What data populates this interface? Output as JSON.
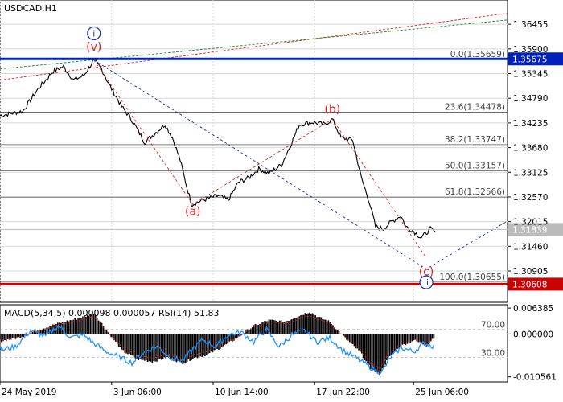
{
  "chart_data": [
    {
      "type": "line",
      "symbol": "USDCAD,H1",
      "ylim": [
        1.302,
        1.37
      ],
      "yticks": [
        1.36455,
        1.359,
        1.35345,
        1.3479,
        1.34235,
        1.3368,
        1.33125,
        1.3257,
        1.32015,
        1.3146,
        1.30905
      ],
      "ytick_labels": [
        "1.36455",
        "1.35900",
        "1.35345",
        "1.34790",
        "1.34235",
        "1.33680",
        "1.33125",
        "1.32570",
        "1.32015",
        "1.31460",
        "1.30905"
      ],
      "xlim": [
        0,
        1000
      ],
      "xtick_x": [
        0,
        220,
        420,
        620,
        815
      ],
      "xtick_labels": [
        "24 May 2019",
        "3 Jun 06:00",
        "10 Jun 14:00",
        "17 Jun 22:00",
        "25 Jun 06:00"
      ],
      "price_points": [
        [
          0,
          1.344
        ],
        [
          45,
          1.345
        ],
        [
          75,
          1.35
        ],
        [
          105,
          1.354
        ],
        [
          125,
          1.355
        ],
        [
          145,
          1.352
        ],
        [
          165,
          1.353
        ],
        [
          185,
          1.3565
        ],
        [
          200,
          1.3545
        ],
        [
          215,
          1.351
        ],
        [
          240,
          1.346
        ],
        [
          260,
          1.343
        ],
        [
          285,
          1.338
        ],
        [
          305,
          1.34
        ],
        [
          325,
          1.342
        ],
        [
          340,
          1.339
        ],
        [
          355,
          1.334
        ],
        [
          368,
          1.328
        ],
        [
          378,
          1.324
        ],
        [
          400,
          1.325
        ],
        [
          430,
          1.326
        ],
        [
          450,
          1.325
        ],
        [
          470,
          1.329
        ],
        [
          490,
          1.33
        ],
        [
          510,
          1.332
        ],
        [
          530,
          1.331
        ],
        [
          555,
          1.333
        ],
        [
          575,
          1.338
        ],
        [
          590,
          1.342
        ],
        [
          615,
          1.3425
        ],
        [
          640,
          1.342
        ],
        [
          655,
          1.3432
        ],
        [
          672,
          1.339
        ],
        [
          695,
          1.3385
        ],
        [
          712,
          1.33
        ],
        [
          728,
          1.3245
        ],
        [
          740,
          1.319
        ],
        [
          755,
          1.3185
        ],
        [
          770,
          1.32
        ],
        [
          790,
          1.3215
        ],
        [
          800,
          1.319
        ],
        [
          815,
          1.318
        ],
        [
          830,
          1.3165
        ],
        [
          848,
          1.3185
        ],
        [
          858,
          1.3178
        ]
      ],
      "horizontal_lines": [
        {
          "price": 1.35675,
          "label": "1.35675",
          "color": "#0022bb"
        },
        {
          "price": 1.30608,
          "label": "1.30608",
          "color": "#cc0000"
        },
        {
          "price": 1.31839,
          "label": "1.31839",
          "color": "#bbbbbb"
        }
      ],
      "fibonacci_levels": [
        {
          "price": 1.35659,
          "label": "0.0(1.35659)"
        },
        {
          "price": 1.34478,
          "label": "23.6(1.34478)"
        },
        {
          "price": 1.33747,
          "label": "38.2(1.33747)"
        },
        {
          "price": 1.33157,
          "label": "50.0(1.33157)"
        },
        {
          "price": 1.32566,
          "label": "61.8(1.32566)"
        },
        {
          "price": 1.30655,
          "label": "100.0(1.30655)"
        }
      ],
      "wave_labels": [
        {
          "text": "i",
          "x": 185,
          "price": 1.3625,
          "color": "#1a2eb0",
          "circled": true
        },
        {
          "text": "(v)",
          "x": 185,
          "price": 1.3595,
          "color": "#dd2222",
          "circled": false
        },
        {
          "text": "(a)",
          "x": 380,
          "price": 1.3225,
          "color": "#dd2222",
          "circled": false
        },
        {
          "text": "(b)",
          "x": 655,
          "price": 1.3455,
          "color": "#dd2222",
          "circled": false
        },
        {
          "text": "(c)",
          "x": 840,
          "price": 1.309,
          "color": "#dd2222",
          "circled": false
        },
        {
          "text": "ii",
          "x": 840,
          "price": 1.3065,
          "color": "#1a2eb0",
          "circled": true
        }
      ],
      "wave_lines": [
        {
          "points": [
            [
              185,
              1.3565
            ],
            [
              840,
              1.3095
            ],
            [
              1000,
              1.3203
            ]
          ],
          "color": "#1a2eb0"
        },
        {
          "points": [
            [
              185,
              1.3565
            ],
            [
              380,
              1.324
            ],
            [
              655,
              1.3432
            ],
            [
              840,
              1.312
            ]
          ],
          "color": "#dd2222"
        }
      ],
      "trend_lines": [
        {
          "points": [
            [
              0,
              1.352
            ],
            [
              1000,
              1.367
            ]
          ],
          "color": "#dd2222"
        },
        {
          "points": [
            [
              0,
              1.3545
            ],
            [
              1000,
              1.3655
            ]
          ],
          "color": "#228822"
        }
      ]
    },
    {
      "type": "line",
      "indicator_label": "MACD(5,34,5) 0.000098 0.000057 RSI(14) 51.83",
      "ylim": [
        -0.0118,
        0.0072
      ],
      "yticks": [
        0.006385,
        0.0,
        -0.010561
      ],
      "ytick_labels": [
        "0.006385",
        "0.000000",
        "-0.010561"
      ],
      "rsi_levels": [
        70,
        30
      ],
      "rsi_level_labels": [
        "70.00",
        "30.00"
      ],
      "macd_histogram": [
        [
          0,
          -0.0018
        ],
        [
          40,
          -0.0008
        ],
        [
          80,
          0.0012
        ],
        [
          120,
          0.0028
        ],
        [
          160,
          0.004
        ],
        [
          185,
          0.0052
        ],
        [
          210,
          0.001
        ],
        [
          240,
          -0.004
        ],
        [
          270,
          -0.0062
        ],
        [
          300,
          -0.0068
        ],
        [
          330,
          -0.0058
        ],
        [
          360,
          -0.0072
        ],
        [
          380,
          -0.006
        ],
        [
          410,
          -0.005
        ],
        [
          440,
          -0.003
        ],
        [
          470,
          -0.0008
        ],
        [
          500,
          0.002
        ],
        [
          530,
          0.0034
        ],
        [
          560,
          0.003
        ],
        [
          590,
          0.0045
        ],
        [
          610,
          0.0055
        ],
        [
          630,
          0.004
        ],
        [
          650,
          0.003
        ],
        [
          680,
          -0.001
        ],
        [
          710,
          -0.0045
        ],
        [
          730,
          -0.0085
        ],
        [
          748,
          -0.01
        ],
        [
          765,
          -0.006
        ],
        [
          790,
          -0.003
        ],
        [
          815,
          -0.0015
        ],
        [
          840,
          -0.0028
        ],
        [
          858,
          -0.0005
        ]
      ],
      "rsi_values": [
        [
          0,
          40
        ],
        [
          30,
          45
        ],
        [
          60,
          68
        ],
        [
          90,
          60
        ],
        [
          115,
          75
        ],
        [
          140,
          58
        ],
        [
          165,
          62
        ],
        [
          185,
          50
        ],
        [
          210,
          38
        ],
        [
          235,
          30
        ],
        [
          260,
          22
        ],
        [
          285,
          38
        ],
        [
          310,
          46
        ],
        [
          335,
          30
        ],
        [
          360,
          25
        ],
        [
          380,
          42
        ],
        [
          400,
          55
        ],
        [
          425,
          45
        ],
        [
          450,
          62
        ],
        [
          475,
          66
        ],
        [
          500,
          52
        ],
        [
          525,
          70
        ],
        [
          550,
          45
        ],
        [
          575,
          62
        ],
        [
          600,
          68
        ],
        [
          625,
          52
        ],
        [
          650,
          58
        ],
        [
          675,
          40
        ],
        [
          700,
          30
        ],
        [
          720,
          20
        ],
        [
          738,
          12
        ],
        [
          752,
          8
        ],
        [
          770,
          30
        ],
        [
          790,
          44
        ],
        [
          815,
          38
        ],
        [
          835,
          50
        ],
        [
          858,
          45
        ]
      ]
    }
  ],
  "colors": {
    "price": "#000000",
    "rsi": "#1e90ff",
    "macd_signal": "#ee2222",
    "histogram": "#000000",
    "grid": "#d8d8d8"
  }
}
